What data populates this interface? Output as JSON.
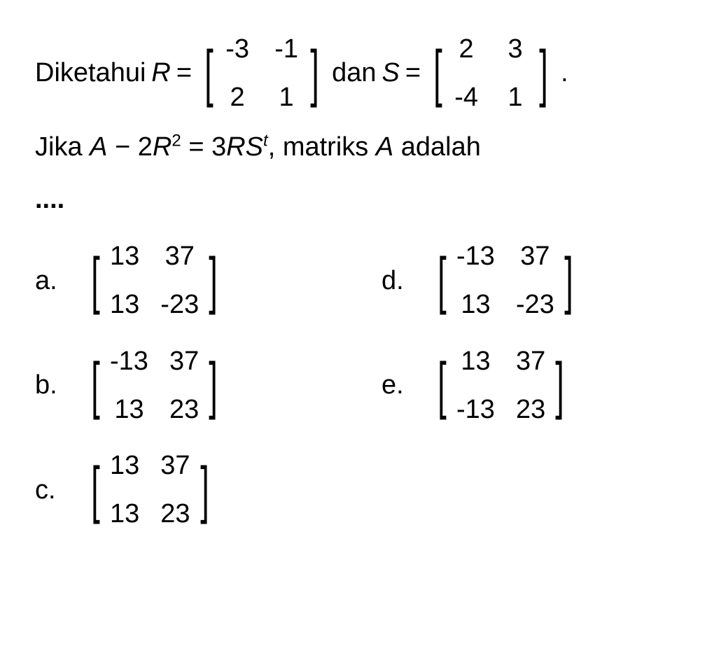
{
  "question": {
    "prefix": "Diketahui",
    "var_R": "R",
    "equals1": "=",
    "matrix_R": [
      [
        "-3",
        "-1"
      ],
      [
        "2",
        "1"
      ]
    ],
    "dan": "dan",
    "var_S": "S",
    "equals2": "=",
    "matrix_S": [
      [
        "2",
        "3"
      ],
      [
        "-4",
        "1"
      ]
    ],
    "period": ".",
    "line2_part1": "Jika ",
    "line2_var_A": "A",
    "line2_minus": " − 2",
    "line2_var_R": "R",
    "line2_sq": "2",
    "line2_eq": " = 3",
    "line2_var_R2": "R",
    "line2_var_S": "S",
    "line2_t": "t",
    "line2_part2": ", matriks ",
    "line2_var_A2": "A",
    "line2_part3": " adalah",
    "dots": "...."
  },
  "options": {
    "a": {
      "label": "a.",
      "matrix": [
        [
          "13",
          "37"
        ],
        [
          "13",
          "-23"
        ]
      ]
    },
    "b": {
      "label": "b.",
      "matrix": [
        [
          "-13",
          "37"
        ],
        [
          "13",
          "23"
        ]
      ]
    },
    "c": {
      "label": "c.",
      "matrix": [
        [
          "13",
          "37"
        ],
        [
          "13",
          "23"
        ]
      ]
    },
    "d": {
      "label": "d.",
      "matrix": [
        [
          "-13",
          "37"
        ],
        [
          "13",
          "-23"
        ]
      ]
    },
    "e": {
      "label": "e.",
      "matrix": [
        [
          "13",
          "37"
        ],
        [
          "-13",
          "23"
        ]
      ]
    }
  },
  "colors": {
    "background": "#ffffff",
    "text": "#000000"
  },
  "typography": {
    "body_fontsize": 38,
    "sup_fontsize": 24,
    "bracket_fontsize": 90
  }
}
